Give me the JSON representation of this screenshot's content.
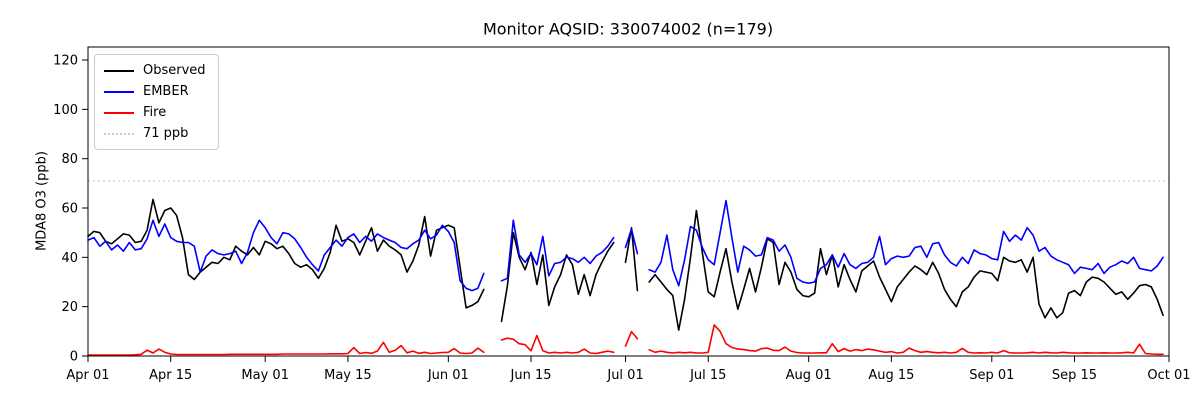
{
  "title": "Monitor AQSID: 330074002 (n=179)",
  "chart_data": {
    "type": "line",
    "title": "Monitor AQSID: 330074002 (n=179)",
    "xlabel": "",
    "ylabel": "MDA8 O3 (ppb)",
    "ylim": [
      0,
      125
    ],
    "y_ticks": [
      0,
      20,
      40,
      60,
      80,
      100,
      120
    ],
    "x_range_days": 183,
    "x_ticks": [
      {
        "day": 0,
        "label": "Apr 01"
      },
      {
        "day": 14,
        "label": "Apr 15"
      },
      {
        "day": 30,
        "label": "May 01"
      },
      {
        "day": 44,
        "label": "May 15"
      },
      {
        "day": 61,
        "label": "Jun 01"
      },
      {
        "day": 75,
        "label": "Jun 15"
      },
      {
        "day": 91,
        "label": "Jul 01"
      },
      {
        "day": 105,
        "label": "Jul 15"
      },
      {
        "day": 122,
        "label": "Aug 01"
      },
      {
        "day": 136,
        "label": "Aug 15"
      },
      {
        "day": 153,
        "label": "Sep 01"
      },
      {
        "day": 167,
        "label": "Sep 15"
      },
      {
        "day": 183,
        "label": "Oct 01"
      }
    ],
    "threshold": {
      "value": 71,
      "label": "71 ppb",
      "color": "#cccccc",
      "style": "dotted"
    },
    "legend_position": "upper-left",
    "grid": false,
    "legend": [
      {
        "name": "Observed",
        "color": "#000000",
        "style": "solid"
      },
      {
        "name": "EMBER",
        "color": "#0000ff",
        "style": "solid"
      },
      {
        "name": "Fire",
        "color": "#ff0000",
        "style": "solid"
      },
      {
        "name": "71 ppb",
        "color": "#cccccc",
        "style": "dotted"
      }
    ],
    "series": [
      {
        "name": "Observed",
        "color": "#000000",
        "values": [
          48.5,
          50.5,
          50,
          46.5,
          45.5,
          47.5,
          49.5,
          49,
          46,
          46.5,
          51,
          63.5,
          54,
          59,
          60,
          57,
          48,
          33,
          31,
          34,
          36,
          38,
          37.5,
          40,
          39,
          44.5,
          42.5,
          41,
          44,
          41,
          46.5,
          45.5,
          43.5,
          44.5,
          41.5,
          37.5,
          36,
          37,
          35,
          31.5,
          35.5,
          42,
          53,
          46.5,
          47.5,
          46,
          41,
          46.5,
          52,
          42.5,
          47,
          44.5,
          43,
          41,
          34,
          38.5,
          45,
          56.5,
          40.5,
          51,
          52,
          53,
          52,
          36,
          19.5,
          20.5,
          22,
          27,
          null,
          null,
          14,
          28.5,
          50,
          40,
          35,
          42,
          29,
          41,
          20.5,
          28,
          33,
          41,
          37,
          25,
          33,
          24.5,
          33,
          38,
          42.5,
          46,
          null,
          38,
          52,
          26.5,
          null,
          30,
          33,
          30,
          27,
          24.5,
          10.5,
          23,
          40,
          59,
          42,
          26,
          24,
          34,
          43.5,
          30,
          19,
          27,
          35.5,
          26,
          36,
          47.5,
          46,
          29,
          38,
          34,
          27,
          24.5,
          24,
          25.5,
          43.5,
          33,
          41,
          28,
          37,
          31,
          26,
          34.5,
          36.5,
          38.5,
          32,
          27,
          22,
          28,
          31,
          34,
          36.5,
          35,
          33,
          38,
          33.5,
          27,
          23,
          20,
          26,
          28,
          32,
          34.5,
          34,
          33.5,
          30.5,
          40,
          38.5,
          38,
          39,
          34,
          40,
          21,
          15.5,
          19.5,
          15.5,
          17.5,
          25.5,
          26.5,
          24.5,
          30,
          32,
          31.5,
          30,
          27.5,
          25,
          26,
          23,
          25.5,
          28.5,
          29,
          28,
          23,
          16.5
        ]
      },
      {
        "name": "EMBER",
        "color": "#0000ff",
        "values": [
          47,
          48,
          44.5,
          46.5,
          43,
          45,
          42.5,
          46,
          43,
          43.5,
          47.5,
          55,
          48.5,
          53.5,
          48,
          46.5,
          46,
          46,
          44.5,
          34,
          40.5,
          43,
          41.5,
          41,
          41.5,
          42.5,
          37.5,
          42,
          50,
          55,
          52,
          48,
          45.5,
          50,
          49.5,
          47.5,
          44,
          40,
          37,
          34.5,
          41,
          44,
          47,
          44.5,
          48,
          49.5,
          46,
          48.5,
          46.5,
          49.5,
          48,
          47,
          46,
          44,
          43.5,
          45.5,
          47,
          51,
          47.5,
          49,
          53,
          50.5,
          46,
          30.5,
          27.5,
          26.5,
          27.5,
          33.5,
          null,
          null,
          30.5,
          31.5,
          55,
          41,
          38,
          41.5,
          37,
          48.5,
          32.5,
          37.5,
          38,
          40,
          39.5,
          38,
          40,
          37.5,
          40.5,
          42,
          44.5,
          48,
          null,
          44,
          51.5,
          41.5,
          null,
          35,
          34,
          38,
          49,
          35,
          28.5,
          39,
          52.5,
          51,
          44,
          39,
          37,
          50,
          63,
          48,
          34,
          44.5,
          43,
          40.5,
          41,
          48,
          47,
          42.5,
          45,
          40,
          31.5,
          30,
          29.5,
          30,
          35.5,
          37,
          41,
          36,
          41.5,
          37,
          35.5,
          37.5,
          38,
          40,
          48.5,
          37,
          39.5,
          40.5,
          40,
          40.5,
          44,
          44.5,
          40,
          45.5,
          46,
          41,
          38,
          36.5,
          40,
          37.5,
          43,
          41.5,
          41,
          39.5,
          39,
          50.5,
          46.5,
          49,
          47,
          52,
          49,
          42.5,
          44,
          40.5,
          39,
          38,
          37,
          33.5,
          36,
          35.5,
          35,
          37.5,
          33.5,
          36,
          37,
          38.5,
          37.5,
          40,
          35.5,
          35,
          34.5,
          36.5,
          40
        ]
      },
      {
        "name": "Fire",
        "color": "#ff0000",
        "values": [
          0.4,
          0.4,
          0.4,
          0.4,
          0.4,
          0.4,
          0.4,
          0.4,
          0.5,
          0.7,
          2.4,
          1.2,
          2.8,
          1.5,
          0.8,
          0.6,
          0.6,
          0.6,
          0.6,
          0.6,
          0.6,
          0.6,
          0.6,
          0.6,
          0.7,
          0.7,
          0.7,
          0.7,
          0.7,
          0.7,
          0.7,
          0.7,
          0.7,
          0.8,
          0.8,
          0.8,
          0.8,
          0.8,
          0.8,
          0.8,
          0.8,
          0.9,
          0.9,
          0.9,
          1,
          3.4,
          1,
          1.4,
          1.1,
          2,
          5.5,
          1.5,
          2.3,
          4.2,
          1.3,
          2,
          1.1,
          1.5,
          1,
          1.2,
          1.4,
          1.5,
          3,
          1.2,
          1,
          1.2,
          3.2,
          1.5,
          null,
          null,
          6.5,
          7.2,
          6.8,
          5,
          4.6,
          2.1,
          8.3,
          2.2,
          1.2,
          1.5,
          1.2,
          1.5,
          1.2,
          1.5,
          2.8,
          1.2,
          1,
          1.5,
          2,
          1.5,
          null,
          4,
          9.9,
          7,
          null,
          2.5,
          1.5,
          2,
          1.5,
          1.2,
          1.5,
          1.3,
          1.5,
          1.2,
          1.2,
          1.5,
          12.6,
          10,
          5,
          3.5,
          2.8,
          2.6,
          2.2,
          2,
          3,
          3.2,
          2.3,
          2.2,
          3.6,
          2,
          1.4,
          1.2,
          1.2,
          1.2,
          1.3,
          1.3,
          5,
          1.8,
          3,
          2,
          2.6,
          2.2,
          2.8,
          2.5,
          2,
          1.5,
          1.8,
          1.2,
          1.5,
          3.2,
          2.2,
          1.5,
          1.8,
          1.5,
          1.3,
          1.5,
          1.2,
          1.5,
          3.1,
          1.5,
          1.2,
          1.3,
          1.2,
          1.5,
          1.2,
          2.2,
          1.3,
          1.2,
          1.2,
          1.3,
          1.5,
          1.2,
          1.5,
          1.3,
          1.2,
          1.5,
          1.3,
          1.2,
          1.2,
          1.3,
          1.2,
          1.2,
          1.3,
          1.2,
          1.2,
          1.3,
          1.5,
          1.2,
          4.8,
          1,
          0.8,
          0.7,
          0.7
        ]
      }
    ]
  }
}
